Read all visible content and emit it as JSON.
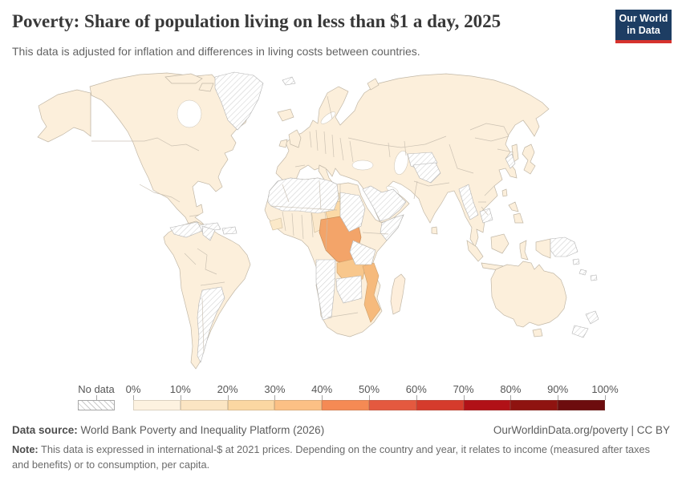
{
  "header": {
    "title": "Poverty: Share of population living on less than $1 a day, 2025",
    "subtitle": "This data is adjusted for inflation and differences in living costs between countries.",
    "logo_line1": "Our World",
    "logo_line2": "in Data",
    "logo_bg": "#1d3d63",
    "logo_accent": "#d6322d"
  },
  "legend": {
    "no_data_label": "No data",
    "tick_labels": [
      "0%",
      "10%",
      "20%",
      "30%",
      "40%",
      "50%",
      "60%",
      "70%",
      "80%",
      "90%",
      "100%"
    ],
    "bin_colors": [
      "#fdf2e0",
      "#fbe5c3",
      "#fbd7a2",
      "#fcc085",
      "#f58a54",
      "#e4593f",
      "#d53b2c",
      "#b11117",
      "#8f1310",
      "#6d0c0e"
    ]
  },
  "footer": {
    "source_label": "Data source:",
    "source_text": " World Bank Poverty and Inequality Platform (2026)",
    "credit": "OurWorldinData.org/poverty | CC BY",
    "note_label": "Note:",
    "note_text": " This data is expressed in international-$ at 2021 prices. Depending on the country and year, it relates to income (measured after taxes and benefits) or to consumption, per capita."
  },
  "map": {
    "palette": {
      "land": "#fcefdb",
      "chad": "#fbe9c9",
      "niger": "#fbecd2",
      "guinea": "#fbe9c9",
      "cameroon": "#fbe8cb",
      "car": "#fbd9a6",
      "drc": "#f3a469",
      "zambia": "#f8c78c",
      "mozambique": "#f6ba7c",
      "madagascar": "#fdeedb"
    }
  },
  "chart_data": {
    "type": "choropleth",
    "title": "Poverty: Share of population living on less than $1 a day, 2025",
    "unit": "% of population",
    "legend_position": "bottom",
    "bins": [
      {
        "range": "0-10%",
        "color": "#fdf2e0"
      },
      {
        "range": "10-20%",
        "color": "#fbe5c3"
      },
      {
        "range": "20-30%",
        "color": "#fbd7a2"
      },
      {
        "range": "30-40%",
        "color": "#fcc085"
      },
      {
        "range": "40-50%",
        "color": "#f58a54"
      },
      {
        "range": "50-60%",
        "color": "#e4593f"
      },
      {
        "range": "60-70%",
        "color": "#d53b2c"
      },
      {
        "range": "70-80%",
        "color": "#b11117"
      },
      {
        "range": "80-90%",
        "color": "#8f1310"
      },
      {
        "range": "90-100%",
        "color": "#6d0c0e"
      }
    ],
    "regions": [
      {
        "name": "Democratic Republic of Congo",
        "band": "30-40%"
      },
      {
        "name": "Mozambique",
        "band": "20-30%"
      },
      {
        "name": "Malawi",
        "band": "20-30%"
      },
      {
        "name": "Zambia",
        "band": "20-30%"
      },
      {
        "name": "Central African Republic",
        "band": "20-30%"
      },
      {
        "name": "Chad",
        "band": "10-20%"
      },
      {
        "name": "Niger",
        "band": "10-20%"
      },
      {
        "name": "Guinea",
        "band": "10-20%"
      },
      {
        "name": "Cameroon",
        "band": "10-20%"
      },
      {
        "name": "Madagascar",
        "band": "0-10%"
      },
      {
        "name": "Most countries of the Americas, Europe, Asia and Oceania",
        "band": "0-10%"
      }
    ],
    "no_data_regions": [
      "Greenland",
      "Cuba",
      "Hispaniola",
      "Venezuela",
      "Guyana and Suriname",
      "Argentina",
      "Morocco",
      "Algeria",
      "Libya",
      "Mauritania",
      "Sudan",
      "South Sudan",
      "Eritrea",
      "Somalia",
      "Tanzania",
      "Angola",
      "Namibia",
      "Botswana",
      "Zimbabwe",
      "Saudi Arabia",
      "Turkmenistan",
      "Uzbekistan",
      "Afghanistan",
      "Myanmar",
      "Cambodia",
      "North Korea",
      "Papua New Guinea",
      "New Zealand",
      "Svalbard",
      "Pacific islands"
    ]
  }
}
